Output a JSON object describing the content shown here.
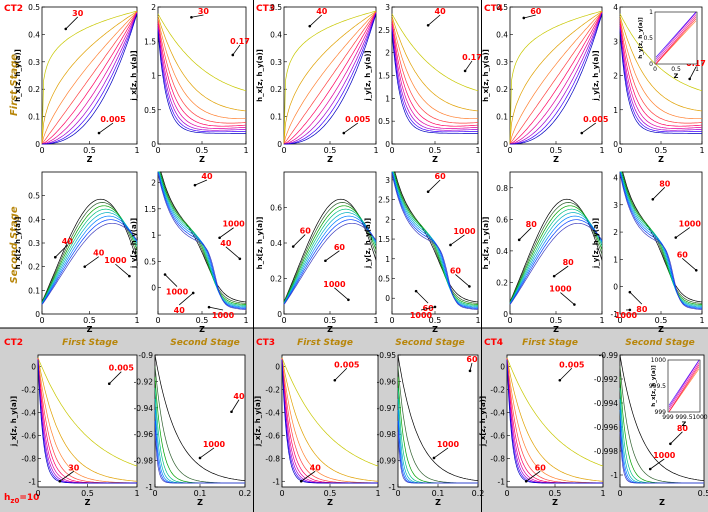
{
  "figure": {
    "bottom_note": "h",
    "bottom_note_sub": "z0",
    "bottom_note_value": "=10"
  },
  "columns": [
    {
      "tag": "CT2"
    },
    {
      "tag": "CT3"
    },
    {
      "tag": "CT4"
    }
  ],
  "row_labels": {
    "first": "First Stage",
    "second": "Second Stage"
  },
  "colors": {
    "lower_band": "#d0d0d0",
    "tag": "#ff0000",
    "stage_label": "#b8860b",
    "annotation": "#ff0000",
    "first_stage_ramp": [
      "#c8c800",
      "#e0a000",
      "#ff8030",
      "#ff4040",
      "#ff0060",
      "#e000a0",
      "#a000d0",
      "#4000ff",
      "#0000c0"
    ],
    "second_stage_ramp": [
      "#000000",
      "#306030",
      "#00a000",
      "#00c080",
      "#00b0c0",
      "#0080ff",
      "#0040ff",
      "#4040c0"
    ]
  },
  "chart_data": [
    {
      "id": "ct2-s1-h",
      "type": "line",
      "xlabel": "Z",
      "ylabel": "h_x[z, h_y(a)]",
      "xlim": [
        0,
        1
      ],
      "ylim": [
        0,
        0.5
      ],
      "xticks": [
        "0",
        "0.5",
        "1"
      ],
      "yticks": [
        "0",
        "0.1",
        "0.2",
        "0.3",
        "0.4",
        "0.5"
      ],
      "shape": "hrise",
      "curves": 9,
      "annotations": [
        {
          "text": "30",
          "x": 0.25,
          "y": 0.42
        },
        {
          "text": "0.005",
          "x": 0.6,
          "y": 0.04
        }
      ]
    },
    {
      "id": "ct2-s1-j",
      "type": "line",
      "xlabel": "Z",
      "ylabel": "j_x[z, h_y(a)]",
      "xlim": [
        0,
        1
      ],
      "ylim": [
        0,
        2
      ],
      "xticks": [
        "0",
        "0.5",
        "1"
      ],
      "yticks": [
        "0",
        "0.5",
        "1",
        "1.5",
        "2"
      ],
      "shape": "jdecay",
      "curves": 9,
      "annotations": [
        {
          "text": "30",
          "x": 0.38,
          "y": 1.85
        },
        {
          "text": "0.17",
          "x": 0.85,
          "y": 1.3
        }
      ]
    },
    {
      "id": "ct3-s1-h",
      "type": "line",
      "xlabel": "Z",
      "ylabel": "h_x[z, h_y(a)]",
      "xlim": [
        0,
        1
      ],
      "ylim": [
        0,
        0.5
      ],
      "xticks": [
        "0",
        "0.5",
        "1"
      ],
      "yticks": [
        "0",
        "0.1",
        "0.2",
        "0.3",
        "0.4",
        "0.5"
      ],
      "shape": "hrise",
      "curves": 9,
      "annotations": [
        {
          "text": "40",
          "x": 0.28,
          "y": 0.43
        },
        {
          "text": "0.005",
          "x": 0.65,
          "y": 0.04
        }
      ]
    },
    {
      "id": "ct3-s1-j",
      "type": "line",
      "xlabel": "Z",
      "ylabel": "j_y[z, h_y(a)]",
      "xlim": [
        0,
        1
      ],
      "ylim": [
        0,
        3
      ],
      "xticks": [
        "0",
        "0.5",
        "1"
      ],
      "yticks": [
        "0",
        "0.5",
        "1",
        "1.5",
        "2",
        "2.5",
        "3"
      ],
      "shape": "jdecay",
      "curves": 9,
      "annotations": [
        {
          "text": "40",
          "x": 0.42,
          "y": 2.6
        },
        {
          "text": "0.17",
          "x": 0.85,
          "y": 1.6
        }
      ]
    },
    {
      "id": "ct4-s1-h",
      "type": "line",
      "xlabel": "Z",
      "ylabel": "h_x[z, h_y(a)]",
      "xlim": [
        0,
        1
      ],
      "ylim": [
        0,
        0.5
      ],
      "xticks": [
        "0",
        "0.5",
        "1"
      ],
      "yticks": [
        "0",
        "0.1",
        "0.2",
        "0.3",
        "0.4",
        "0.5"
      ],
      "shape": "hrise",
      "curves": 9,
      "annotations": [
        {
          "text": "60",
          "x": 0.15,
          "y": 0.46
        },
        {
          "text": "0.005",
          "x": 0.78,
          "y": 0.04
        }
      ]
    },
    {
      "id": "ct4-s1-j",
      "type": "line",
      "xlabel": "Z",
      "ylabel": "j_y[z, h_y(a)]",
      "xlim": [
        0,
        1
      ],
      "ylim": [
        0,
        4
      ],
      "xticks": [
        "0",
        "0.5",
        "1"
      ],
      "yticks": [
        "0",
        "1",
        "2",
        "3",
        "4"
      ],
      "shape": "jdecay",
      "curves": 9,
      "annotations": [
        {
          "text": "0.17",
          "x": 0.85,
          "y": 1.9
        }
      ],
      "inset": {
        "xlim": [
          0,
          1
        ],
        "ylim": [
          0,
          1
        ],
        "xticks": [
          "0",
          "0.5",
          "1"
        ],
        "yticks": [
          "0",
          "0.5",
          "1"
        ],
        "xlabel": "Z",
        "ylabel": "h_y[z, h_y(a)]"
      }
    },
    {
      "id": "ct2-s2-h",
      "type": "line",
      "xlabel": "Z",
      "ylabel": "h_x[z, h_y(a)]",
      "xlim": [
        0,
        1
      ],
      "ylim": [
        0,
        0.6
      ],
      "xticks": [
        "0",
        "0.5",
        "1"
      ],
      "yticks": [
        "0",
        "0.1",
        "0.2",
        "0.3",
        "0.4",
        "0.5"
      ],
      "shape": "hpeak",
      "curves": 8,
      "annotations": [
        {
          "text": "40",
          "x": 0.14,
          "y": 0.24
        },
        {
          "text": "40",
          "x": 0.45,
          "y": 0.2
        },
        {
          "text": "1000",
          "x": 0.92,
          "y": 0.16
        }
      ]
    },
    {
      "id": "ct2-s2-j",
      "type": "line",
      "xlabel": "Z",
      "ylabel": "j_y[z, h_y(a)]",
      "xlim": [
        0,
        1
      ],
      "ylim": [
        -0.5,
        2.2
      ],
      "xticks": [
        "0",
        "0.5",
        "1"
      ],
      "yticks": [
        "0",
        "0.5",
        "1",
        "1.5",
        "2"
      ],
      "shape": "jsecond",
      "curves": 8,
      "annotations": [
        {
          "text": "40",
          "x": 0.42,
          "y": 1.95
        },
        {
          "text": "1000",
          "x": 0.7,
          "y": 0.95
        },
        {
          "text": "40",
          "x": 0.93,
          "y": 0.55
        },
        {
          "text": "1000",
          "x": 0.08,
          "y": 0.25
        },
        {
          "text": "40",
          "x": 0.4,
          "y": -0.1
        },
        {
          "text": "1000",
          "x": 0.58,
          "y": -0.37
        }
      ]
    },
    {
      "id": "ct3-s2-h",
      "type": "line",
      "xlabel": "Z",
      "ylabel": "h_x[z, h_y(a)]",
      "xlim": [
        0,
        1
      ],
      "ylim": [
        0,
        0.8
      ],
      "xticks": [
        "0",
        "0.5",
        "1"
      ],
      "yticks": [
        "0",
        "0.2",
        "0.4",
        "0.6"
      ],
      "shape": "hpeak",
      "curves": 8,
      "annotations": [
        {
          "text": "60",
          "x": 0.1,
          "y": 0.38
        },
        {
          "text": "60",
          "x": 0.45,
          "y": 0.3
        },
        {
          "text": "1000",
          "x": 0.7,
          "y": 0.08
        }
      ]
    },
    {
      "id": "ct3-s2-j",
      "type": "line",
      "xlabel": "Z",
      "ylabel": "j_y[z, h_y(a)]",
      "xlim": [
        0,
        1
      ],
      "ylim": [
        -0.4,
        3.2
      ],
      "xticks": [
        "0",
        "0.5",
        "1"
      ],
      "yticks": [
        "0",
        "0.5",
        "1",
        "1.5",
        "2",
        "2.5",
        "3"
      ],
      "shape": "jsecond",
      "curves": 8,
      "annotations": [
        {
          "text": "60",
          "x": 0.42,
          "y": 2.7
        },
        {
          "text": "1000",
          "x": 0.68,
          "y": 1.35
        },
        {
          "text": "60",
          "x": 0.9,
          "y": 0.3
        },
        {
          "text": "60",
          "x": 0.28,
          "y": 0.18
        },
        {
          "text": "1000",
          "x": 0.5,
          "y": -0.22
        }
      ]
    },
    {
      "id": "ct4-s2-h",
      "type": "line",
      "xlabel": "Z",
      "ylabel": "h_x[z, h_y(a)]",
      "xlim": [
        0,
        1
      ],
      "ylim": [
        0,
        0.9
      ],
      "xticks": [
        "0",
        "0.5",
        "1"
      ],
      "yticks": [
        "0",
        "0.2",
        "0.4",
        "0.6",
        "0.8"
      ],
      "shape": "hpeak",
      "curves": 8,
      "annotations": [
        {
          "text": "80",
          "x": 0.1,
          "y": 0.47
        },
        {
          "text": "80",
          "x": 0.48,
          "y": 0.24
        },
        {
          "text": "1000",
          "x": 0.7,
          "y": 0.06
        }
      ]
    },
    {
      "id": "ct4-s2-j",
      "type": "line",
      "xlabel": "Z",
      "ylabel": "j_y[z, h_y(a)]",
      "xlim": [
        0,
        1
      ],
      "ylim": [
        -1,
        4.2
      ],
      "xticks": [
        "0",
        "0.5",
        "1"
      ],
      "yticks": [
        "-1",
        "0",
        "1",
        "2",
        "3",
        "4"
      ],
      "shape": "jsecond",
      "curves": 8,
      "annotations": [
        {
          "text": "80",
          "x": 0.4,
          "y": 3.2
        },
        {
          "text": "1000",
          "x": 0.68,
          "y": 1.8
        },
        {
          "text": "60",
          "x": 0.93,
          "y": 0.6
        },
        {
          "text": "80",
          "x": 0.12,
          "y": -0.2
        },
        {
          "text": "1000",
          "x": 0.12,
          "y": -0.85
        }
      ]
    },
    {
      "id": "ct2-b1",
      "type": "line",
      "xlabel": "Z",
      "ylabel": "j_x[z, h_y(a)]",
      "xlim": [
        0,
        1
      ],
      "ylim": [
        -1.05,
        0.1
      ],
      "xticks": [
        "0",
        "0.5",
        "1"
      ],
      "yticks": [
        "-1",
        "-0.8",
        "-0.6",
        "-0.4",
        "-0.2",
        "0"
      ],
      "shape": "jdrop",
      "curves": 9,
      "annotations": [
        {
          "text": "0.005",
          "x": 0.72,
          "y": -0.15
        },
        {
          "text": "30",
          "x": 0.22,
          "y": -1.0
        }
      ]
    },
    {
      "id": "ct2-b2",
      "type": "line",
      "xlabel": "Z",
      "ylabel": "",
      "xlim": [
        0,
        0.2
      ],
      "ylim": [
        -1,
        -0.9
      ],
      "xticks": [
        "0",
        "0.1",
        "0.2"
      ],
      "yticks": [
        "-1",
        "-0.98",
        "-0.96",
        "-0.94",
        "-0.92",
        "-0.9"
      ],
      "shape": "jflat",
      "curves": 8,
      "annotations": [
        {
          "text": "40",
          "x": 0.17,
          "y": -0.943
        },
        {
          "text": "1000",
          "x": 0.1,
          "y": -0.978
        }
      ]
    },
    {
      "id": "ct3-b1",
      "type": "line",
      "xlabel": "Z",
      "ylabel": "j_x[z, h_y(a)]",
      "xlim": [
        0,
        1
      ],
      "ylim": [
        -1.05,
        0.1
      ],
      "xticks": [
        "0",
        "0.5",
        "1"
      ],
      "yticks": [
        "-1",
        "-0.8",
        "-0.6",
        "-0.4",
        "-0.2",
        "0"
      ],
      "shape": "jdrop",
      "curves": 9,
      "annotations": [
        {
          "text": "0.005",
          "x": 0.55,
          "y": -0.12
        },
        {
          "text": "40",
          "x": 0.2,
          "y": -1.0
        }
      ]
    },
    {
      "id": "ct3-b2",
      "type": "line",
      "xlabel": "Z",
      "ylabel": "",
      "xlim": [
        0,
        0.2
      ],
      "ylim": [
        -1,
        -0.95
      ],
      "xticks": [
        "0",
        "0.1",
        "0.2"
      ],
      "yticks": [
        "-1",
        "-0.99",
        "-0.98",
        "-0.97",
        "-0.96",
        "-0.95"
      ],
      "shape": "jflat",
      "curves": 8,
      "annotations": [
        {
          "text": "60",
          "x": 0.18,
          "y": -0.956
        },
        {
          "text": "1000",
          "x": 0.09,
          "y": -0.989
        }
      ]
    },
    {
      "id": "ct4-b1",
      "type": "line",
      "xlabel": "Z",
      "ylabel": "j_x[z, h_y(a)]",
      "xlim": [
        0,
        1
      ],
      "ylim": [
        -1.05,
        0.1
      ],
      "xticks": [
        "0",
        "0.5",
        "1"
      ],
      "yticks": [
        "-1",
        "-0.8",
        "-0.6",
        "-0.4",
        "-0.2",
        "0"
      ],
      "shape": "jdrop",
      "curves": 9,
      "annotations": [
        {
          "text": "0.005",
          "x": 0.55,
          "y": -0.12
        },
        {
          "text": "60",
          "x": 0.2,
          "y": -1.0
        }
      ]
    },
    {
      "id": "ct4-b2",
      "type": "line",
      "xlabel": "Z",
      "ylabel": "",
      "xlim": [
        0,
        0.5
      ],
      "ylim": [
        -1.001,
        -0.99
      ],
      "xticks": [
        "0",
        "0.5"
      ],
      "yticks": [
        "-1",
        "-0.998",
        "-0.996",
        "-0.994",
        "-0.992",
        "-0.99"
      ],
      "shape": "jflat",
      "curves": 8,
      "annotations": [
        {
          "text": "80",
          "x": 0.3,
          "y": -0.9974
        },
        {
          "text": "1000",
          "x": 0.18,
          "y": -0.9995
        }
      ],
      "inset": {
        "xlim": [
          999,
          1000
        ],
        "ylim": [
          999,
          1000
        ],
        "xticks": [
          "999",
          "999.5",
          "1000"
        ],
        "yticks": [
          "999",
          "999.5",
          "1000"
        ],
        "xlabel": "Z",
        "ylabel": "h_x[z, h_y(a)]"
      }
    }
  ]
}
